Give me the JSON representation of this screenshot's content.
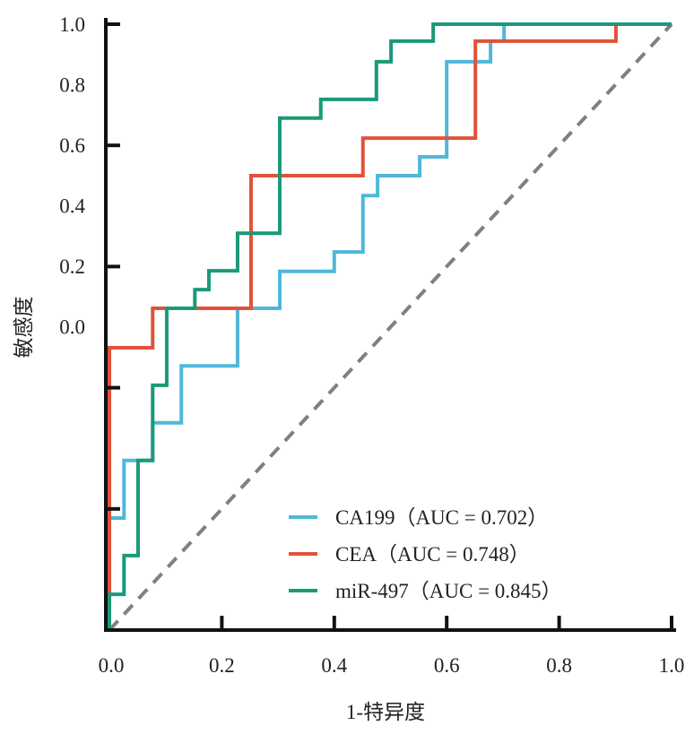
{
  "chart_data": {
    "type": "line",
    "title": "",
    "xlabel": "1-特异度",
    "ylabel": "敏感度",
    "xlim": [
      0,
      1
    ],
    "ylim": [
      0,
      1
    ],
    "grid": false,
    "legend_position": "bottom-right",
    "x_ticks": [
      "0.0",
      "0.2",
      "0.4",
      "0.6",
      "0.8",
      "1.0"
    ],
    "y_ticks": [
      "1.0",
      "0.8",
      "0.6",
      "0.4",
      "0.2",
      "0.0"
    ],
    "reference_line": {
      "style": "dashed",
      "color": "#808080",
      "points": [
        [
          0,
          0
        ],
        [
          1,
          1
        ]
      ]
    },
    "series": [
      {
        "name": "CA199（AUC = 0.702）",
        "color": "#4fb8d8",
        "points": [
          [
            0,
            0
          ],
          [
            0,
            0.185
          ],
          [
            0.026,
            0.185
          ],
          [
            0.026,
            0.28
          ],
          [
            0.077,
            0.28
          ],
          [
            0.077,
            0.342
          ],
          [
            0.128,
            0.342
          ],
          [
            0.128,
            0.436
          ],
          [
            0.228,
            0.436
          ],
          [
            0.228,
            0.531
          ],
          [
            0.303,
            0.531
          ],
          [
            0.303,
            0.592
          ],
          [
            0.4,
            0.592
          ],
          [
            0.4,
            0.624
          ],
          [
            0.451,
            0.624
          ],
          [
            0.451,
            0.717
          ],
          [
            0.477,
            0.717
          ],
          [
            0.477,
            0.75
          ],
          [
            0.552,
            0.75
          ],
          [
            0.552,
            0.781
          ],
          [
            0.6,
            0.781
          ],
          [
            0.6,
            0.938
          ],
          [
            0.678,
            0.938
          ],
          [
            0.678,
            0.972
          ],
          [
            0.702,
            0.972
          ],
          [
            0.702,
            1
          ],
          [
            1,
            1
          ]
        ]
      },
      {
        "name": "CEA（AUC = 0.748）",
        "color": "#e0533a",
        "points": [
          [
            0,
            0
          ],
          [
            0,
            0.466
          ],
          [
            0.077,
            0.466
          ],
          [
            0.077,
            0.531
          ],
          [
            0.252,
            0.531
          ],
          [
            0.252,
            0.75
          ],
          [
            0.451,
            0.75
          ],
          [
            0.451,
            0.812
          ],
          [
            0.651,
            0.812
          ],
          [
            0.651,
            0.972
          ],
          [
            0.901,
            0.972
          ],
          [
            0.901,
            1
          ],
          [
            1,
            1
          ]
        ]
      },
      {
        "name": "miR-497（AUC = 0.845）",
        "color": "#1a9a7a",
        "points": [
          [
            0,
            0
          ],
          [
            0,
            0.059
          ],
          [
            0.026,
            0.059
          ],
          [
            0.026,
            0.123
          ],
          [
            0.051,
            0.123
          ],
          [
            0.051,
            0.28
          ],
          [
            0.077,
            0.28
          ],
          [
            0.077,
            0.404
          ],
          [
            0.102,
            0.404
          ],
          [
            0.102,
            0.531
          ],
          [
            0.152,
            0.531
          ],
          [
            0.152,
            0.562
          ],
          [
            0.177,
            0.562
          ],
          [
            0.177,
            0.593
          ],
          [
            0.228,
            0.593
          ],
          [
            0.228,
            0.655
          ],
          [
            0.303,
            0.655
          ],
          [
            0.303,
            0.845
          ],
          [
            0.376,
            0.845
          ],
          [
            0.376,
            0.876
          ],
          [
            0.475,
            0.876
          ],
          [
            0.475,
            0.938
          ],
          [
            0.501,
            0.938
          ],
          [
            0.501,
            0.972
          ],
          [
            0.576,
            0.972
          ],
          [
            0.576,
            1
          ],
          [
            1,
            1
          ]
        ]
      }
    ]
  }
}
